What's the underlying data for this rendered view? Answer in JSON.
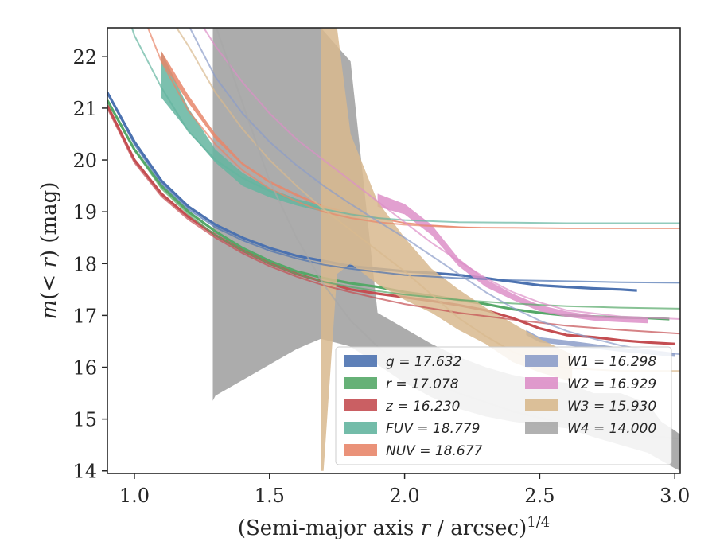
{
  "chart_data": {
    "type": "line",
    "xlabel": "(Semi-major axis r / arcsec)^1/4",
    "ylabel": "m(< r) (mag)",
    "xlim": [
      0.9,
      3.02
    ],
    "ylim": [
      22.55,
      13.95
    ],
    "y_inverted": true,
    "grid": false,
    "legend_placement": "lower-right",
    "x_ticks": [
      "1.0",
      "1.5",
      "2.0",
      "2.5",
      "3.0"
    ],
    "y_ticks": [
      "14",
      "15",
      "16",
      "17",
      "18",
      "19",
      "20",
      "21",
      "22"
    ],
    "series": [
      {
        "name": "g = 17.632",
        "color": "#4c72b0",
        "band_x": [
          0.9,
          1.0,
          1.1,
          1.2,
          1.3,
          1.4,
          1.5,
          1.6,
          1.7,
          1.8,
          1.9,
          2.0,
          2.1,
          2.2,
          2.3,
          2.4,
          2.5,
          2.6,
          2.7,
          2.8,
          2.86
        ],
        "band_lo": [
          21.3,
          20.35,
          19.6,
          19.1,
          18.75,
          18.5,
          18.3,
          18.15,
          18.05,
          17.95,
          17.9,
          17.85,
          17.82,
          17.78,
          17.72,
          17.65,
          17.58,
          17.55,
          17.52,
          17.5,
          17.48
        ],
        "band_hi": [
          21.3,
          20.35,
          19.6,
          19.1,
          18.75,
          18.5,
          18.3,
          18.15,
          18.05,
          17.95,
          17.9,
          17.85,
          17.82,
          17.78,
          17.72,
          17.65,
          17.58,
          17.55,
          17.52,
          17.5,
          17.48
        ],
        "model_x": [
          0.9,
          1.0,
          1.1,
          1.2,
          1.3,
          1.4,
          1.5,
          1.6,
          1.7,
          1.8,
          1.9,
          2.0,
          2.2,
          2.4,
          2.6,
          2.8,
          3.02
        ],
        "model_y": [
          21.3,
          20.3,
          19.55,
          19.05,
          18.7,
          18.45,
          18.25,
          18.1,
          17.98,
          17.9,
          17.84,
          17.78,
          17.72,
          17.68,
          17.66,
          17.64,
          17.63
        ]
      },
      {
        "name": "r = 17.078",
        "color": "#55a868",
        "band_x": [
          0.9,
          1.0,
          1.1,
          1.2,
          1.3,
          1.4,
          1.5,
          1.6,
          1.7,
          1.8,
          1.9,
          2.0,
          2.1,
          2.2,
          2.3,
          2.4,
          2.5,
          2.6,
          2.7,
          2.8,
          2.9,
          2.98
        ],
        "band_lo": [
          21.15,
          20.2,
          19.5,
          19.0,
          18.62,
          18.3,
          18.05,
          17.85,
          17.72,
          17.62,
          17.55,
          17.45,
          17.38,
          17.3,
          17.22,
          17.12,
          17.05,
          17.0,
          16.98,
          16.96,
          16.95,
          16.93
        ],
        "band_hi": [
          21.15,
          20.2,
          19.5,
          19.0,
          18.62,
          18.3,
          18.05,
          17.85,
          17.72,
          17.62,
          17.55,
          17.45,
          17.38,
          17.3,
          17.22,
          17.12,
          17.05,
          17.0,
          16.98,
          16.96,
          16.95,
          16.93
        ],
        "model_x": [
          0.9,
          1.0,
          1.1,
          1.2,
          1.3,
          1.4,
          1.5,
          1.6,
          1.7,
          1.8,
          1.9,
          2.0,
          2.2,
          2.4,
          2.6,
          2.8,
          3.02
        ],
        "model_y": [
          21.15,
          20.2,
          19.45,
          18.95,
          18.55,
          18.25,
          18.0,
          17.8,
          17.65,
          17.55,
          17.47,
          17.4,
          17.3,
          17.23,
          17.18,
          17.15,
          17.13
        ]
      },
      {
        "name": "z = 16.230",
        "color": "#c44e52",
        "band_x": [
          0.9,
          1.0,
          1.1,
          1.2,
          1.3,
          1.4,
          1.5,
          1.6,
          1.7,
          1.8,
          1.9,
          2.0,
          2.1,
          2.2,
          2.3,
          2.4,
          2.5,
          2.6,
          2.7,
          2.8,
          2.9,
          3.0
        ],
        "band_lo": [
          21.05,
          20.0,
          19.35,
          18.9,
          18.55,
          18.25,
          18.0,
          17.8,
          17.65,
          17.5,
          17.42,
          17.35,
          17.28,
          17.2,
          17.1,
          16.95,
          16.75,
          16.62,
          16.58,
          16.52,
          16.48,
          16.45
        ],
        "band_hi": [
          21.05,
          20.0,
          19.35,
          18.9,
          18.55,
          18.25,
          18.0,
          17.8,
          17.65,
          17.5,
          17.42,
          17.35,
          17.28,
          17.2,
          17.1,
          16.95,
          16.75,
          16.62,
          16.58,
          16.52,
          16.48,
          16.45
        ],
        "model_x": [
          0.9,
          1.0,
          1.1,
          1.2,
          1.3,
          1.4,
          1.5,
          1.6,
          1.7,
          1.8,
          1.9,
          2.0,
          2.2,
          2.4,
          2.6,
          2.8,
          3.02
        ],
        "model_y": [
          21.0,
          19.95,
          19.3,
          18.85,
          18.5,
          18.2,
          17.95,
          17.75,
          17.58,
          17.45,
          17.33,
          17.22,
          17.05,
          16.92,
          16.8,
          16.72,
          16.65
        ]
      },
      {
        "name": "FUV = 18.779",
        "color": "#64b5a0",
        "band_x": [
          1.1,
          1.2,
          1.3,
          1.4,
          1.5,
          1.6,
          1.7
        ],
        "band_lo": [
          22.1,
          21.0,
          20.2,
          19.75,
          19.45,
          19.25,
          19.12
        ],
        "band_hi": [
          21.2,
          20.55,
          19.95,
          19.5,
          19.28,
          19.12,
          19.0
        ],
        "model_x": [
          0.95,
          1.0,
          1.1,
          1.2,
          1.3,
          1.4,
          1.5,
          1.6,
          1.7,
          1.8,
          1.9,
          2.0,
          2.2,
          2.4,
          2.6,
          2.8,
          3.02
        ],
        "model_y": [
          23.2,
          22.4,
          21.4,
          20.55,
          20.0,
          19.65,
          19.4,
          19.2,
          19.05,
          18.95,
          18.88,
          18.84,
          18.8,
          18.79,
          18.78,
          18.78,
          18.78
        ]
      },
      {
        "name": "NUV = 18.677",
        "color": "#e8866a",
        "band_x": [
          1.1,
          1.2,
          1.3,
          1.4,
          1.5,
          1.6,
          1.7,
          1.8,
          1.9,
          2.0,
          2.1,
          2.2,
          2.28
        ],
        "band_lo": [
          22.1,
          21.25,
          20.5,
          19.95,
          19.6,
          19.35,
          19.12,
          18.98,
          18.9,
          18.8,
          18.75,
          18.72,
          18.7
        ],
        "band_hi": [
          21.9,
          21.1,
          20.4,
          19.9,
          19.55,
          19.3,
          19.08,
          18.95,
          18.86,
          18.77,
          18.72,
          18.7,
          18.68
        ],
        "model_x": [
          1.0,
          1.1,
          1.2,
          1.3,
          1.4,
          1.5,
          1.6,
          1.7,
          1.8,
          1.9,
          2.0,
          2.2,
          2.4,
          2.6,
          2.8,
          3.02
        ],
        "model_y": [
          23.2,
          21.9,
          20.95,
          20.3,
          19.8,
          19.45,
          19.2,
          19.0,
          18.88,
          18.8,
          18.75,
          18.7,
          18.69,
          18.68,
          18.68,
          18.68
        ]
      },
      {
        "name": "W1 = 16.298",
        "color": "#8c9dc9",
        "band_x": [
          2.45,
          2.5,
          2.6,
          2.7,
          2.8,
          2.9,
          3.0
        ],
        "band_lo": [
          16.72,
          16.58,
          16.52,
          16.45,
          16.38,
          16.32,
          16.28
        ],
        "band_hi": [
          16.62,
          16.48,
          16.42,
          16.36,
          16.3,
          16.25,
          16.2
        ],
        "model_x": [
          1.2,
          1.3,
          1.4,
          1.5,
          1.6,
          1.7,
          1.8,
          1.9,
          2.0,
          2.1,
          2.2,
          2.3,
          2.4,
          2.5,
          2.6,
          2.7,
          2.8,
          2.9,
          3.02
        ],
        "model_y": [
          22.6,
          21.6,
          20.9,
          20.35,
          19.9,
          19.5,
          19.15,
          18.82,
          18.5,
          18.15,
          17.8,
          17.45,
          17.15,
          16.9,
          16.7,
          16.55,
          16.42,
          16.33,
          16.25
        ]
      },
      {
        "name": "W2 = 16.929",
        "color": "#dd8fc8",
        "band_x": [
          1.9,
          2.0,
          2.1,
          2.2,
          2.3,
          2.4,
          2.5,
          2.6,
          2.7,
          2.8,
          2.9
        ],
        "band_lo": [
          19.35,
          19.15,
          18.75,
          18.1,
          17.7,
          17.42,
          17.2,
          17.08,
          17.0,
          16.97,
          16.95
        ],
        "band_hi": [
          19.1,
          18.95,
          18.55,
          17.95,
          17.55,
          17.3,
          17.08,
          16.97,
          16.9,
          16.87,
          16.85
        ],
        "model_x": [
          1.25,
          1.3,
          1.4,
          1.5,
          1.6,
          1.7,
          1.8,
          1.9,
          2.0,
          2.1,
          2.2,
          2.3,
          2.4,
          2.5,
          2.6,
          2.8,
          3.02
        ],
        "model_y": [
          22.6,
          22.2,
          21.5,
          20.9,
          20.4,
          20.0,
          19.6,
          19.2,
          18.8,
          18.4,
          18.05,
          17.72,
          17.45,
          17.25,
          17.1,
          16.98,
          16.93
        ]
      },
      {
        "name": "W3 = 15.930",
        "color": "#d8b98e",
        "band_x": [
          1.69,
          1.7,
          1.75,
          1.8,
          1.9,
          2.0,
          2.1,
          2.2,
          2.3,
          2.4,
          2.5,
          2.62
        ],
        "band_lo": [
          22.55,
          22.55,
          22.55,
          20.5,
          19.2,
          18.5,
          17.9,
          17.5,
          17.15,
          16.85,
          16.55,
          16.25
        ],
        "band_hi": [
          14.0,
          14.0,
          17.8,
          18.0,
          17.6,
          17.3,
          17.05,
          16.72,
          16.45,
          16.1,
          15.9,
          15.72
        ],
        "model_x": [
          1.15,
          1.2,
          1.3,
          1.4,
          1.5,
          1.6,
          1.7,
          1.8,
          1.9,
          2.0,
          2.1,
          2.2,
          2.3,
          2.4,
          2.5,
          2.6,
          2.8,
          3.02
        ],
        "model_y": [
          22.6,
          22.2,
          21.3,
          20.6,
          20.0,
          19.5,
          19.05,
          18.65,
          18.25,
          17.85,
          17.4,
          16.95,
          16.6,
          16.3,
          16.1,
          15.98,
          15.93,
          15.93
        ]
      },
      {
        "name": "W4 = 14.000",
        "color": "#a8a8a8",
        "band_x": [
          1.29,
          1.3,
          1.4,
          1.5,
          1.6,
          1.69,
          1.8,
          1.9,
          2.0,
          2.1,
          2.2,
          2.3,
          2.4,
          2.5,
          2.6,
          2.7,
          2.8,
          2.9,
          2.95,
          3.0,
          3.02
        ],
        "band_lo": [
          22.55,
          22.55,
          22.55,
          22.55,
          22.55,
          22.55,
          21.9,
          17.05,
          16.75,
          16.45,
          16.2,
          16.0,
          15.85,
          15.75,
          15.7,
          15.5,
          15.5,
          15.3,
          14.95,
          14.78,
          14.7
        ],
        "band_hi": [
          15.35,
          15.45,
          15.75,
          16.05,
          16.35,
          16.55,
          16.4,
          16.05,
          15.7,
          15.42,
          15.2,
          15.05,
          14.95,
          14.88,
          14.82,
          14.65,
          14.5,
          14.35,
          14.2,
          14.05,
          14.0
        ],
        "model_x": [
          1.3,
          1.4,
          1.5,
          1.6,
          1.7,
          1.8,
          1.9,
          2.0,
          2.2,
          2.4,
          2.6,
          2.8,
          3.02
        ],
        "model_y": [
          22.6,
          21.1,
          19.6,
          18.5,
          17.6,
          16.9,
          16.4,
          16.0,
          15.5,
          15.15,
          14.9,
          14.72,
          14.62
        ]
      }
    ]
  }
}
